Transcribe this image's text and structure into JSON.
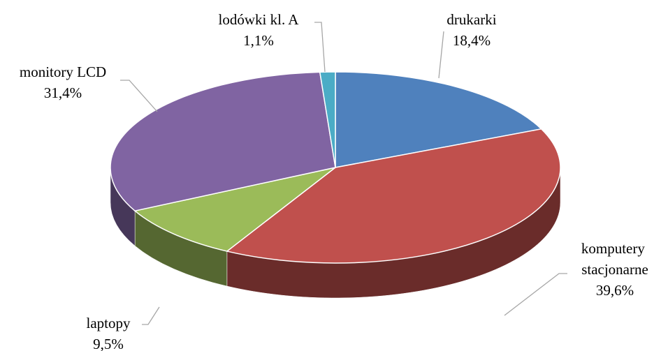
{
  "chart_data": {
    "type": "pie",
    "categories": [
      "drukarki",
      "komputery stacjonarne",
      "laptopy",
      "monitory LCD",
      "lodówki kl. A"
    ],
    "values": [
      18.4,
      39.6,
      9.5,
      31.4,
      1.1
    ],
    "value_labels": [
      "18,4%",
      "39,6%",
      "9,5%",
      "31,4%",
      "1,1%"
    ],
    "colors": [
      "#4f81bd",
      "#c0504d",
      "#9bbb59",
      "#8064a2",
      "#4bacc6"
    ]
  }
}
